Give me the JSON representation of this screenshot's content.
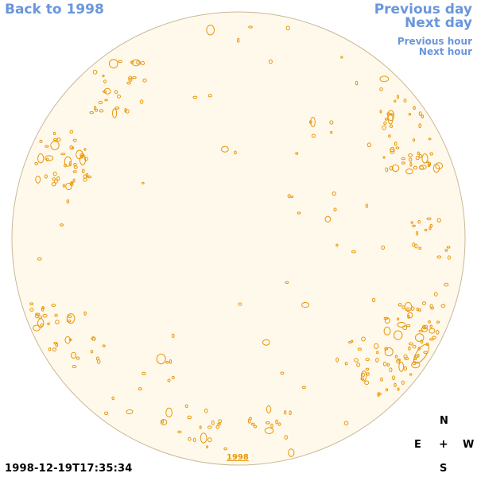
{
  "nav": {
    "back_label": "Back to 1998",
    "prev_day_label": "Previous day",
    "next_day_label": "Next day",
    "prev_hour_label": "Previous hour",
    "next_hour_label": "Next hour"
  },
  "timestamp": "1998-12-19T17:35:34",
  "compass": {
    "north": "N",
    "east": "E",
    "center": "+",
    "west": "W",
    "south": "S"
  },
  "year_link": "1998",
  "colors": {
    "disk_fill": "#fff9ec",
    "disk_border": "#c9b89a",
    "contour": "#e8960a",
    "nav_text": "#6a96dc"
  }
}
